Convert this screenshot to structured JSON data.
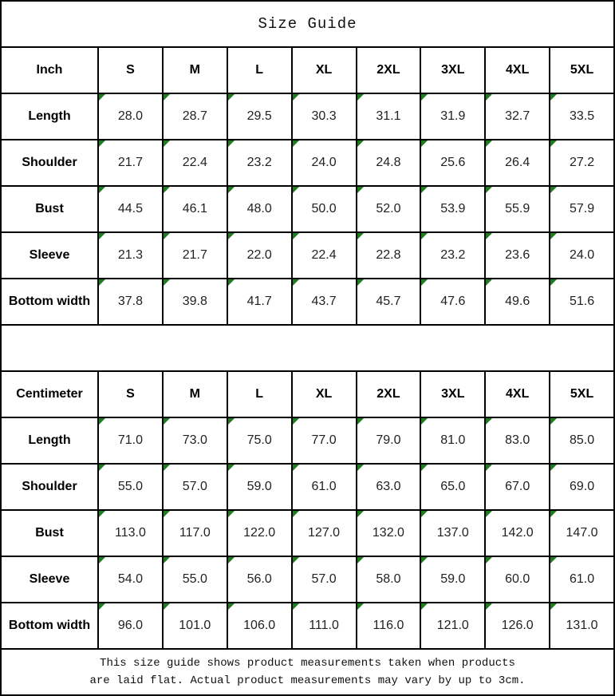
{
  "title": "Size Guide",
  "colors": {
    "triangle_green": "#1f7d1f",
    "border_black": "#000000",
    "text_dark": "#222222"
  },
  "tables": [
    {
      "unit_label": "Inch",
      "sizes": [
        "S",
        "M",
        "L",
        "XL",
        "2XL",
        "3XL",
        "4XL",
        "5XL"
      ],
      "rows": [
        {
          "label": "Length",
          "values": [
            "28.0",
            "28.7",
            "29.5",
            "30.3",
            "31.1",
            "31.9",
            "32.7",
            "33.5"
          ]
        },
        {
          "label": "Shoulder",
          "values": [
            "21.7",
            "22.4",
            "23.2",
            "24.0",
            "24.8",
            "25.6",
            "26.4",
            "27.2"
          ]
        },
        {
          "label": "Bust",
          "values": [
            "44.5",
            "46.1",
            "48.0",
            "50.0",
            "52.0",
            "53.9",
            "55.9",
            "57.9"
          ]
        },
        {
          "label": "Sleeve",
          "values": [
            "21.3",
            "21.7",
            "22.0",
            "22.4",
            "22.8",
            "23.2",
            "23.6",
            "24.0"
          ]
        },
        {
          "label": "Bottom width",
          "values": [
            "37.8",
            "39.8",
            "41.7",
            "43.7",
            "45.7",
            "47.6",
            "49.6",
            "51.6"
          ]
        }
      ]
    },
    {
      "unit_label": "Centimeter",
      "sizes": [
        "S",
        "M",
        "L",
        "XL",
        "2XL",
        "3XL",
        "4XL",
        "5XL"
      ],
      "rows": [
        {
          "label": "Length",
          "values": [
            "71.0",
            "73.0",
            "75.0",
            "77.0",
            "79.0",
            "81.0",
            "83.0",
            "85.0"
          ]
        },
        {
          "label": "Shoulder",
          "values": [
            "55.0",
            "57.0",
            "59.0",
            "61.0",
            "63.0",
            "65.0",
            "67.0",
            "69.0"
          ]
        },
        {
          "label": "Bust",
          "values": [
            "113.0",
            "117.0",
            "122.0",
            "127.0",
            "132.0",
            "137.0",
            "142.0",
            "147.0"
          ]
        },
        {
          "label": "Sleeve",
          "values": [
            "54.0",
            "55.0",
            "56.0",
            "57.0",
            "58.0",
            "59.0",
            "60.0",
            "61.0"
          ]
        },
        {
          "label": "Bottom width",
          "values": [
            "96.0",
            "101.0",
            "106.0",
            "111.0",
            "116.0",
            "121.0",
            "126.0",
            "131.0"
          ]
        }
      ]
    }
  ],
  "footer": {
    "line1": "This size guide shows product measurements taken when products",
    "line2": "are laid flat. Actual product measurements may vary by up to 3cm."
  }
}
